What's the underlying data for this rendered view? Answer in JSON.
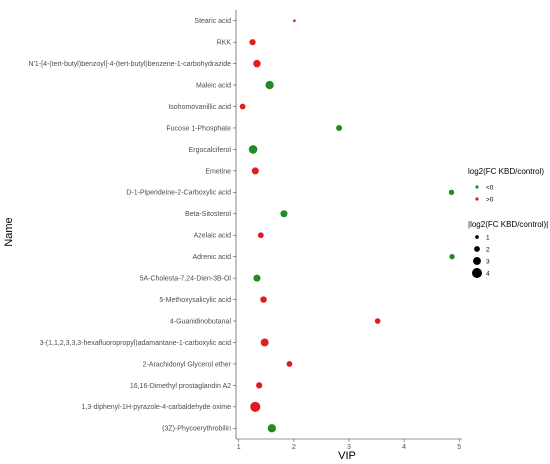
{
  "chart_data": {
    "type": "scatter",
    "title": "",
    "xlabel": "VIP",
    "ylabel": "Name",
    "xlim": [
      0.95,
      5.05
    ],
    "x_ticks": [
      1,
      2,
      3,
      4,
      5
    ],
    "grid": false,
    "legend_position": "right",
    "colors": {
      "neg": "#228B22",
      "pos": "#e41a1c"
    },
    "color_legend": {
      "title": "log2(FC KBD/control)",
      "entries": [
        {
          "key": "neg",
          "label": "<0"
        },
        {
          "key": "pos",
          "label": ">0"
        }
      ]
    },
    "size_legend": {
      "title": "|log2(FC KBD/control)|",
      "entries": [
        {
          "value": 1,
          "label": "1"
        },
        {
          "value": 2,
          "label": "2"
        },
        {
          "value": 3,
          "label": "3"
        },
        {
          "value": 4,
          "label": "4"
        }
      ]
    },
    "points": [
      {
        "name": "Stearic acid",
        "vip": 2.01,
        "sign": "pos",
        "abs_fc": 0.5
      },
      {
        "name": "RKK",
        "vip": 1.25,
        "sign": "pos",
        "abs_fc": 2.2
      },
      {
        "name": "N'1-[4-(tert-butyl)benzoyl]-4-(tert-butyl)benzene-1-carbohydrazide",
        "vip": 1.33,
        "sign": "pos",
        "abs_fc": 2.8
      },
      {
        "name": "Maleic acid",
        "vip": 1.56,
        "sign": "neg",
        "abs_fc": 3.2
      },
      {
        "name": "Isohomovanillic acid",
        "vip": 1.07,
        "sign": "pos",
        "abs_fc": 2.0
      },
      {
        "name": "Fucose 1-Phosphate",
        "vip": 2.82,
        "sign": "neg",
        "abs_fc": 2.1
      },
      {
        "name": "Ergocalciferol",
        "vip": 1.26,
        "sign": "neg",
        "abs_fc": 3.3
      },
      {
        "name": "Emetine",
        "vip": 1.3,
        "sign": "pos",
        "abs_fc": 2.6
      },
      {
        "name": "D-1-Piperideine-2-Carboxylic acid",
        "vip": 4.86,
        "sign": "neg",
        "abs_fc": 1.8
      },
      {
        "name": "Beta-Sitosterol",
        "vip": 1.82,
        "sign": "neg",
        "abs_fc": 2.6
      },
      {
        "name": "Azelaic acid",
        "vip": 1.4,
        "sign": "pos",
        "abs_fc": 2.0
      },
      {
        "name": "Adrenic acid",
        "vip": 4.87,
        "sign": "neg",
        "abs_fc": 1.8
      },
      {
        "name": "5A-Cholesta-7,24-Dien-3B-Ol",
        "vip": 1.33,
        "sign": "neg",
        "abs_fc": 2.6
      },
      {
        "name": "5-Methoxysalicylic acid",
        "vip": 1.45,
        "sign": "pos",
        "abs_fc": 2.3
      },
      {
        "name": "4-Guanidinobutanal",
        "vip": 3.52,
        "sign": "pos",
        "abs_fc": 1.9
      },
      {
        "name": "3-(1,1,2,3,3,3-hexafluoropropyl)adamantane-1-carboxylic acid",
        "vip": 1.47,
        "sign": "pos",
        "abs_fc": 3.0
      },
      {
        "name": "2-Arachidonyl Glycerol ether",
        "vip": 1.92,
        "sign": "pos",
        "abs_fc": 2.0
      },
      {
        "name": "16,16-Dimethyl prostaglandin A2",
        "vip": 1.37,
        "sign": "pos",
        "abs_fc": 2.2
      },
      {
        "name": "1,3-diphenyl-1H-pyrazole-4-carbaldehyde oxime",
        "vip": 1.3,
        "sign": "pos",
        "abs_fc": 4.0
      },
      {
        "name": "(3Z)-Phycoerythrobilin",
        "vip": 1.6,
        "sign": "neg",
        "abs_fc": 3.2
      }
    ]
  }
}
